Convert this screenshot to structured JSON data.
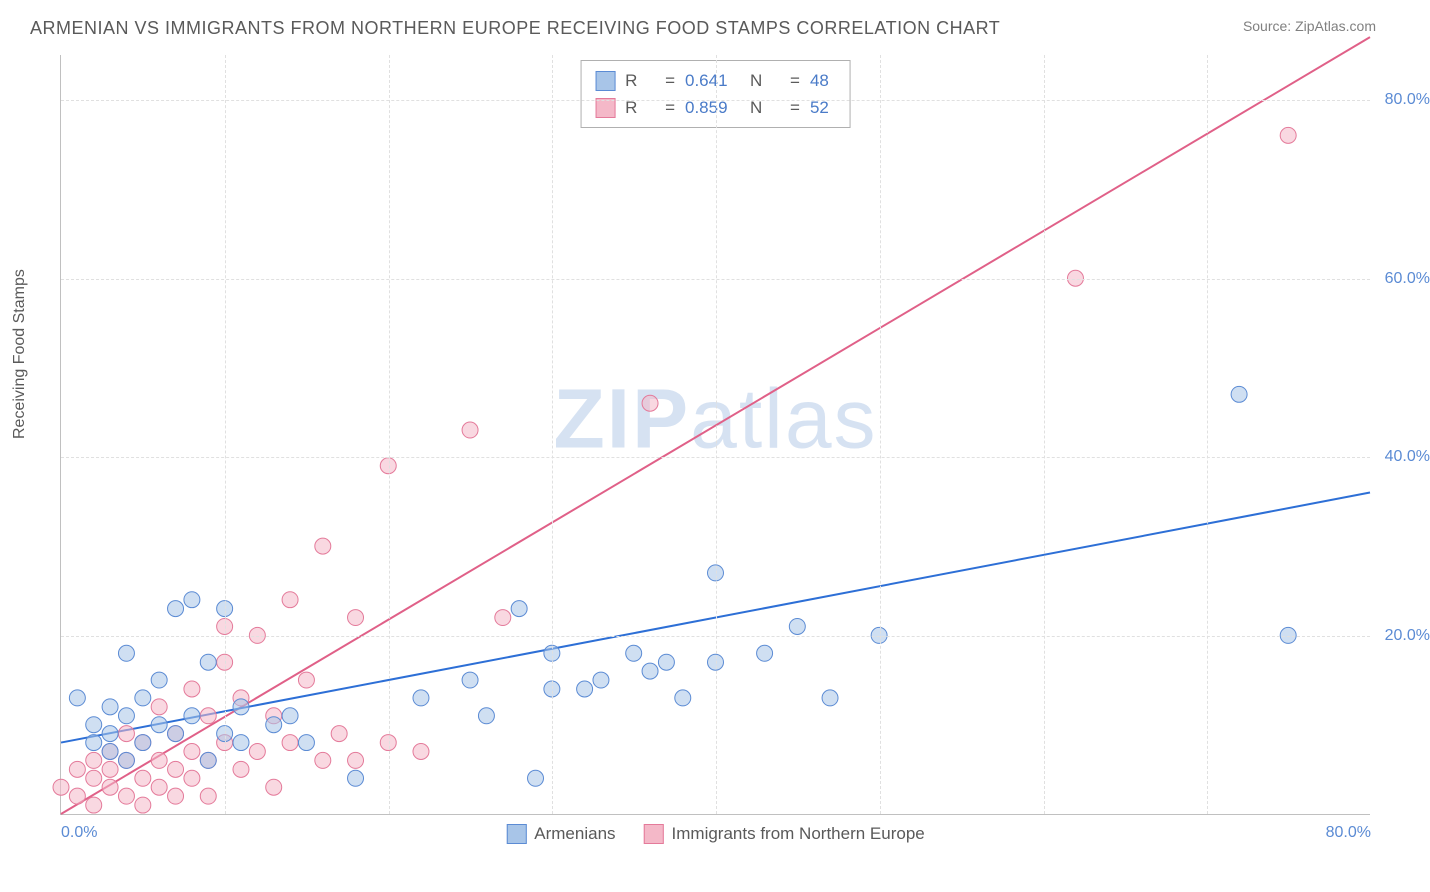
{
  "title": "ARMENIAN VS IMMIGRANTS FROM NORTHERN EUROPE RECEIVING FOOD STAMPS CORRELATION CHART",
  "source": "Source: ZipAtlas.com",
  "y_axis_title": "Receiving Food Stamps",
  "watermark": "ZIPatlas",
  "chart": {
    "type": "scatter-correlation",
    "xlim": [
      0,
      80
    ],
    "ylim": [
      0,
      85
    ],
    "xtick_labels": [
      "0.0%",
      "80.0%"
    ],
    "ytick_values": [
      20,
      40,
      60,
      80
    ],
    "ytick_labels": [
      "20.0%",
      "40.0%",
      "60.0%",
      "80.0%"
    ],
    "grid_color": "#e0e0e0",
    "background_color": "#ffffff",
    "axis_color": "#c0c0c0",
    "label_color": "#5b8bd4",
    "title_color": "#5a5a5a",
    "label_fontsize": 16,
    "title_fontsize": 18,
    "series": [
      {
        "name": "Armenians",
        "color_fill": "#a8c5e8",
        "color_stroke": "#5b8bd4",
        "fill_opacity": 0.55,
        "marker_radius": 8,
        "R": 0.641,
        "N": 48,
        "regression": {
          "x1": 0,
          "y1": 8,
          "x2": 80,
          "y2": 36,
          "color": "#2d6fd6",
          "width": 2
        },
        "points": [
          [
            1,
            13
          ],
          [
            2,
            10
          ],
          [
            2,
            8
          ],
          [
            3,
            9
          ],
          [
            3,
            12
          ],
          [
            3,
            7
          ],
          [
            4,
            18
          ],
          [
            4,
            11
          ],
          [
            4,
            6
          ],
          [
            5,
            13
          ],
          [
            5,
            8
          ],
          [
            6,
            15
          ],
          [
            6,
            10
          ],
          [
            7,
            9
          ],
          [
            7,
            23
          ],
          [
            8,
            24
          ],
          [
            8,
            11
          ],
          [
            9,
            17
          ],
          [
            9,
            6
          ],
          [
            10,
            23
          ],
          [
            10,
            9
          ],
          [
            11,
            12
          ],
          [
            11,
            8
          ],
          [
            13,
            10
          ],
          [
            14,
            11
          ],
          [
            15,
            8
          ],
          [
            18,
            4
          ],
          [
            22,
            13
          ],
          [
            25,
            15
          ],
          [
            26,
            11
          ],
          [
            28,
            23
          ],
          [
            29,
            4
          ],
          [
            30,
            14
          ],
          [
            30,
            18
          ],
          [
            32,
            14
          ],
          [
            33,
            15
          ],
          [
            35,
            18
          ],
          [
            36,
            16
          ],
          [
            37,
            17
          ],
          [
            38,
            13
          ],
          [
            40,
            17
          ],
          [
            40,
            27
          ],
          [
            43,
            18
          ],
          [
            45,
            21
          ],
          [
            47,
            13
          ],
          [
            50,
            20
          ],
          [
            72,
            47
          ],
          [
            75,
            20
          ]
        ]
      },
      {
        "name": "Immigrants from Northern Europe",
        "color_fill": "#f4b8c8",
        "color_stroke": "#e47a9a",
        "fill_opacity": 0.55,
        "marker_radius": 8,
        "R": 0.859,
        "N": 52,
        "regression": {
          "x1": 0,
          "y1": 0,
          "x2": 80,
          "y2": 87,
          "color": "#e06088",
          "width": 2
        },
        "points": [
          [
            0,
            3
          ],
          [
            1,
            5
          ],
          [
            1,
            2
          ],
          [
            2,
            4
          ],
          [
            2,
            6
          ],
          [
            2,
            1
          ],
          [
            3,
            3
          ],
          [
            3,
            7
          ],
          [
            3,
            5
          ],
          [
            4,
            2
          ],
          [
            4,
            6
          ],
          [
            4,
            9
          ],
          [
            5,
            4
          ],
          [
            5,
            1
          ],
          [
            5,
            8
          ],
          [
            6,
            3
          ],
          [
            6,
            6
          ],
          [
            6,
            12
          ],
          [
            7,
            5
          ],
          [
            7,
            2
          ],
          [
            7,
            9
          ],
          [
            8,
            7
          ],
          [
            8,
            14
          ],
          [
            8,
            4
          ],
          [
            9,
            6
          ],
          [
            9,
            11
          ],
          [
            9,
            2
          ],
          [
            10,
            8
          ],
          [
            10,
            17
          ],
          [
            10,
            21
          ],
          [
            11,
            5
          ],
          [
            11,
            13
          ],
          [
            12,
            7
          ],
          [
            12,
            20
          ],
          [
            13,
            3
          ],
          [
            13,
            11
          ],
          [
            14,
            24
          ],
          [
            14,
            8
          ],
          [
            15,
            15
          ],
          [
            16,
            6
          ],
          [
            16,
            30
          ],
          [
            17,
            9
          ],
          [
            18,
            22
          ],
          [
            18,
            6
          ],
          [
            20,
            8
          ],
          [
            20,
            39
          ],
          [
            22,
            7
          ],
          [
            25,
            43
          ],
          [
            27,
            22
          ],
          [
            36,
            46
          ],
          [
            62,
            60
          ],
          [
            75,
            76
          ]
        ]
      }
    ],
    "legend_box": {
      "rows": [
        {
          "swatch_fill": "#a8c5e8",
          "swatch_stroke": "#5b8bd4",
          "r_label": "R",
          "eq": "=",
          "r_value": "0.641",
          "n_label": "N",
          "n_value": "48"
        },
        {
          "swatch_fill": "#f4b8c8",
          "swatch_stroke": "#e47a9a",
          "r_label": "R",
          "eq": "=",
          "r_value": "0.859",
          "n_label": "N",
          "n_value": "52"
        }
      ]
    },
    "bottom_legend": [
      {
        "swatch_fill": "#a8c5e8",
        "swatch_stroke": "#5b8bd4",
        "label": "Armenians"
      },
      {
        "swatch_fill": "#f4b8c8",
        "swatch_stroke": "#e47a9a",
        "label": "Immigrants from Northern Europe"
      }
    ]
  }
}
